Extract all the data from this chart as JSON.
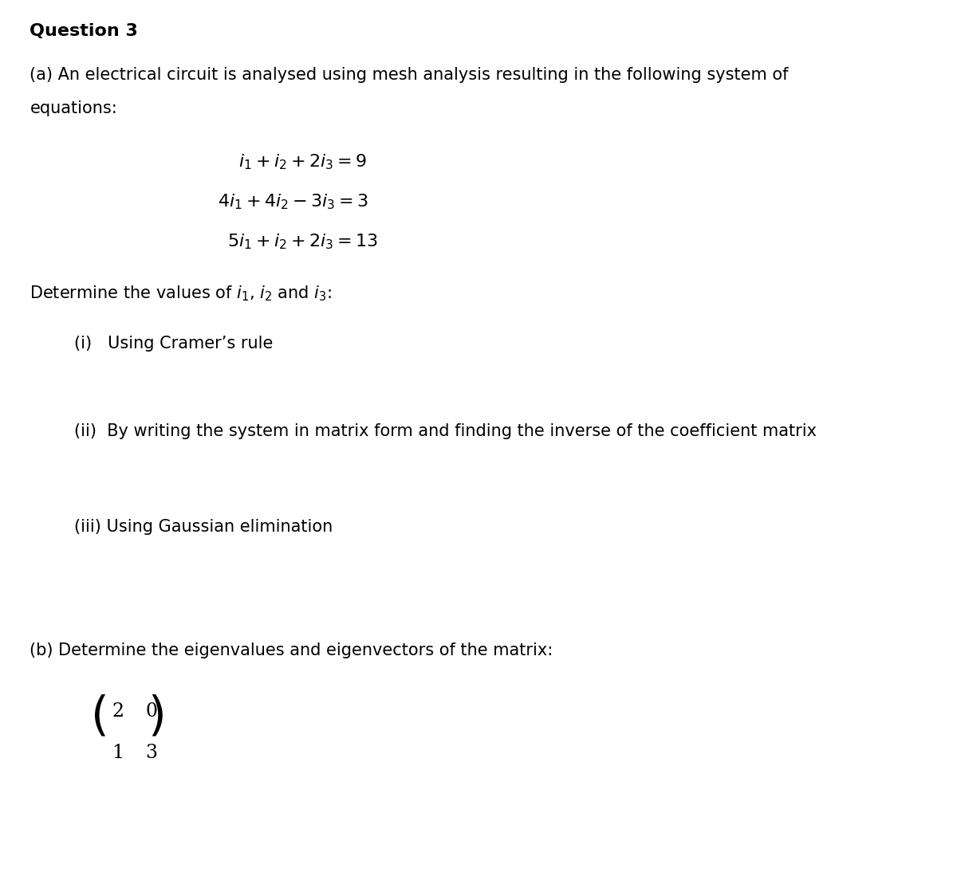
{
  "background_color": "#ffffff",
  "title": "Question 3",
  "para_a_intro": "(a) An electrical circuit is analysed using mesh analysis resulting in the following system of\nequations:",
  "eq1": "$i_1 + i_2 + 2i_3 = 9$",
  "eq2": "$4i_1 + 4i_2 - 3i_3 = 3$",
  "eq3": "$5i_1 + i_2 + 2i_3 = 13$",
  "determine_text": "Determine the values of $i_1$, $i_2$ and $i_3$:",
  "part_i": "(i)   Using Cramer’s rule",
  "part_ii": "(ii)  By writing the system in matrix form and finding the inverse of the coefficient matrix",
  "part_iii": "(iii) Using Gaussian elimination",
  "para_b": "(b) Determine the eigenvalues and eigenvectors of the matrix:",
  "matrix_row1": "2  0",
  "matrix_row2": "1  3",
  "font_size_title": 16,
  "font_size_body": 15,
  "font_size_eq": 15,
  "text_color": "#000000"
}
